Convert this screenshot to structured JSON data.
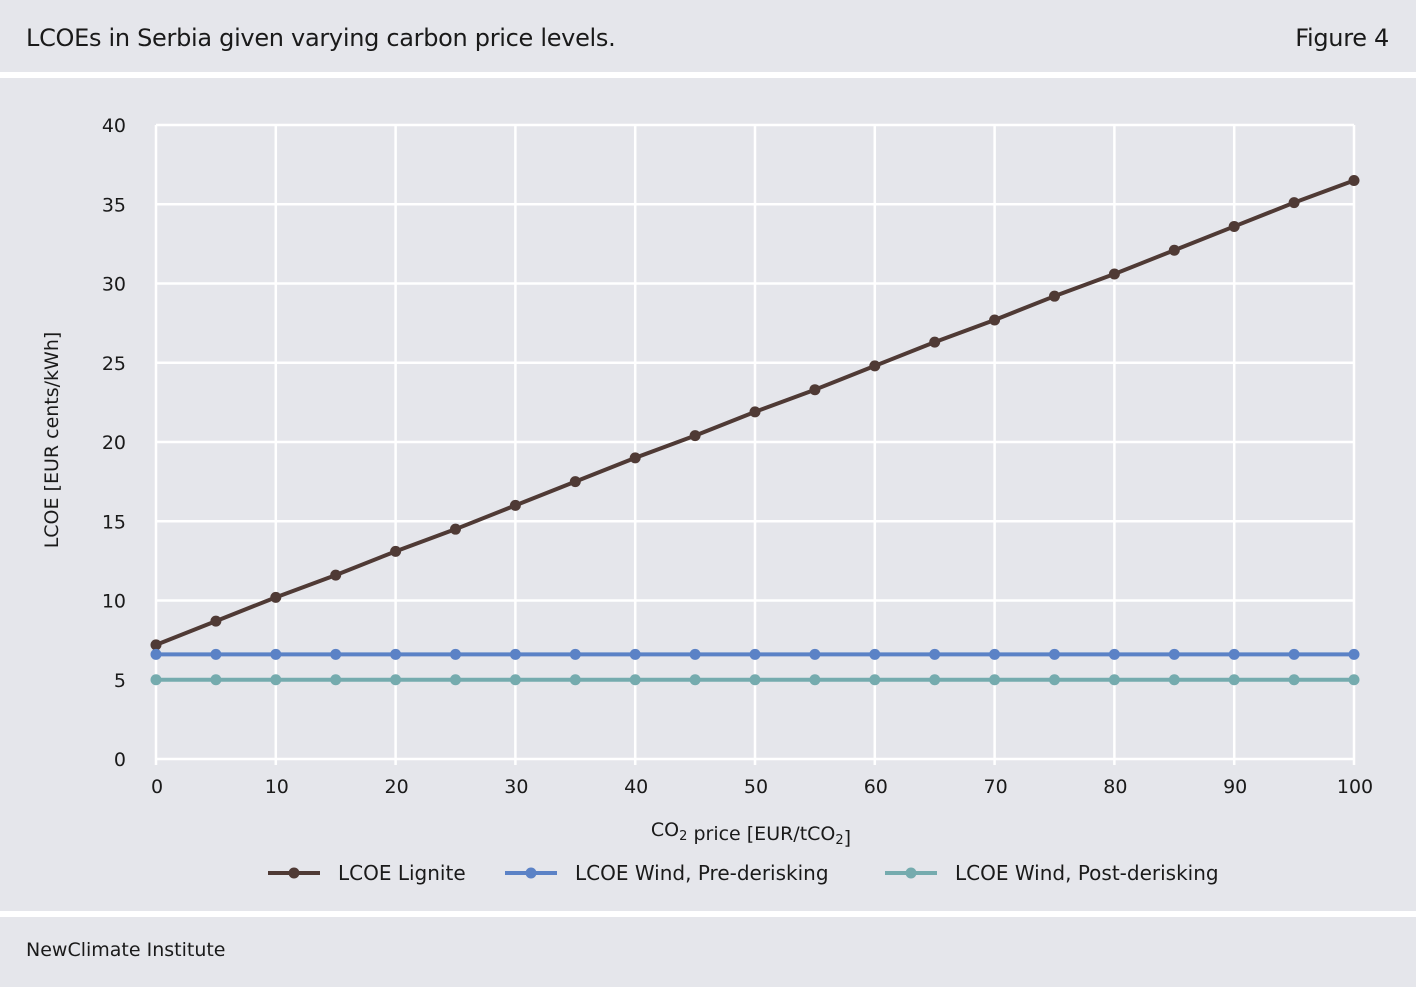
{
  "header": {
    "title": "LCOEs in Serbia given varying carbon price levels.",
    "figure_label": "Figure 4"
  },
  "footer": {
    "source": "NewClimate Institute"
  },
  "colors": {
    "background": "#e5e6eb",
    "gridlines": "#ffffff",
    "lignite": "#4f3a35",
    "wind_pre": "#5b82c6",
    "wind_post": "#75abae"
  },
  "chart_data": {
    "type": "line",
    "title": "",
    "xlabel": "CO2 price [EUR/tCO2]",
    "ylabel": "LCOE  [EUR cents/kWh]",
    "x": [
      0,
      5,
      10,
      15,
      20,
      25,
      30,
      35,
      40,
      45,
      50,
      55,
      60,
      65,
      70,
      75,
      80,
      85,
      90,
      95,
      100
    ],
    "xlim": [
      0,
      100
    ],
    "ylim": [
      0,
      40
    ],
    "x_ticks": [
      0,
      10,
      20,
      30,
      40,
      50,
      60,
      70,
      80,
      90,
      100
    ],
    "y_ticks": [
      0,
      5,
      10,
      15,
      20,
      25,
      30,
      35,
      40
    ],
    "grid": true,
    "legend_position": "bottom",
    "series": [
      {
        "name": "LCOE Lignite",
        "color": "#4f3a35",
        "values": [
          7.2,
          8.7,
          10.2,
          11.6,
          13.1,
          14.5,
          16.0,
          17.5,
          19.0,
          20.4,
          21.9,
          23.3,
          24.8,
          26.3,
          27.7,
          29.2,
          30.6,
          32.1,
          33.6,
          35.1,
          36.5
        ]
      },
      {
        "name": "LCOE Wind, Pre-derisking",
        "color": "#5b82c6",
        "values": [
          6.6,
          6.6,
          6.6,
          6.6,
          6.6,
          6.6,
          6.6,
          6.6,
          6.6,
          6.6,
          6.6,
          6.6,
          6.6,
          6.6,
          6.6,
          6.6,
          6.6,
          6.6,
          6.6,
          6.6,
          6.6
        ]
      },
      {
        "name": "LCOE Wind, Post-derisking",
        "color": "#75abae",
        "values": [
          5.0,
          5.0,
          5.0,
          5.0,
          5.0,
          5.0,
          5.0,
          5.0,
          5.0,
          5.0,
          5.0,
          5.0,
          5.0,
          5.0,
          5.0,
          5.0,
          5.0,
          5.0,
          5.0,
          5.0,
          5.0
        ]
      }
    ]
  }
}
